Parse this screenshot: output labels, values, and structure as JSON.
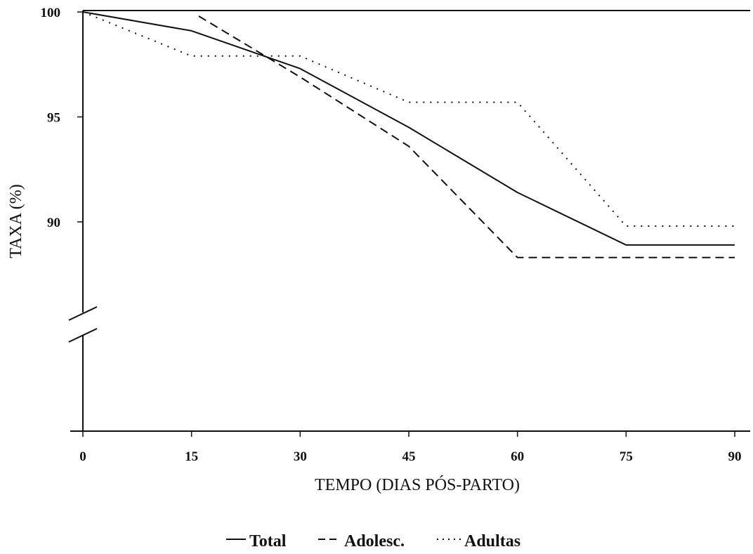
{
  "chart_data": {
    "type": "line",
    "xlabel": "TEMPO (DIAS PÓS-PARTO)",
    "ylabel": "TAXA (%)",
    "x_ticks": [
      "0",
      "15",
      "30",
      "45",
      "60",
      "75",
      "90"
    ],
    "y_ticks": [
      "90",
      "95",
      "100"
    ],
    "xlim": [
      0,
      90
    ],
    "ylim": [
      80,
      100
    ],
    "axis_break_on_y": true,
    "grid": false,
    "legend_position": "bottom-center",
    "series": [
      {
        "name": "Total",
        "line_style": "solid",
        "x": [
          0,
          15,
          30,
          45,
          60,
          75,
          90
        ],
        "y": [
          100,
          99.1,
          97.3,
          94.5,
          91.4,
          88.9,
          88.9
        ]
      },
      {
        "name": "Adolesc.",
        "line_style": "dashed",
        "x": [
          16,
          30,
          45,
          60,
          75,
          90
        ],
        "y": [
          99.8,
          96.9,
          93.6,
          88.3,
          88.3,
          88.3
        ]
      },
      {
        "name": "Adultas",
        "line_style": "dotted",
        "x": [
          0,
          15,
          30,
          45,
          60,
          75,
          90
        ],
        "y": [
          100,
          97.9,
          97.9,
          95.7,
          95.7,
          89.8,
          89.8
        ]
      }
    ]
  }
}
